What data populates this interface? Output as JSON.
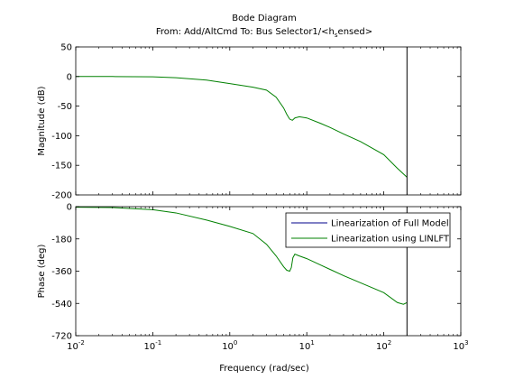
{
  "colors": {
    "background": "#ffffff",
    "axes_background": "#ffffff",
    "axis_line": "#000000",
    "full_model": "#00008b",
    "linlft": "#008000",
    "marker_line": "#000000"
  },
  "chart_data": {
    "type": "line",
    "title": "Bode Diagram",
    "subtitle": "From: Add/AltCmd  To: Bus Selector1/<h_sensed>",
    "xlabel": "Frequency  (rad/sec)",
    "xscale": "log",
    "xlim": [
      0.01,
      1000
    ],
    "x_tick_labels": [
      {
        "base": "10",
        "exp": "-2"
      },
      {
        "base": "10",
        "exp": "-1"
      },
      {
        "base": "10",
        "exp": "0"
      },
      {
        "base": "10",
        "exp": "1"
      },
      {
        "base": "10",
        "exp": "2"
      },
      {
        "base": "10",
        "exp": "3"
      }
    ],
    "vertical_line_at": 200,
    "grid": false,
    "legend": {
      "placement": "top-right of phase plot",
      "entries": [
        {
          "name": "Linearization of Full Model",
          "color": "#00008b"
        },
        {
          "name": "Linearization using LINLFT",
          "color": "#008000"
        }
      ]
    },
    "magnitude": {
      "ylabel": "Magnitude (dB)",
      "ylim": [
        -200,
        50
      ],
      "y_ticks": [
        50,
        0,
        -50,
        -100,
        -150,
        -200
      ],
      "series": [
        {
          "name": "Linearization using LINLFT",
          "x": [
            0.01,
            0.03,
            0.1,
            0.2,
            0.5,
            1,
            2,
            3,
            4,
            5,
            5.5,
            6,
            6.5,
            7,
            8,
            10,
            15,
            20,
            30,
            50,
            100,
            150,
            200
          ],
          "y": [
            0,
            0,
            -0.5,
            -2,
            -6,
            -12,
            -18,
            -23,
            -35,
            -53,
            -64,
            -72,
            -74,
            -70,
            -68,
            -70,
            -79,
            -86,
            -97,
            -110,
            -132,
            -155,
            -170
          ]
        }
      ]
    },
    "phase": {
      "ylabel": "Phase (deg)",
      "ylim": [
        -720,
        0
      ],
      "y_ticks": [
        0,
        -180,
        -360,
        -540,
        -720
      ],
      "series": [
        {
          "name": "Linearization using LINLFT",
          "x": [
            0.01,
            0.03,
            0.1,
            0.2,
            0.5,
            1,
            2,
            3,
            4,
            5,
            5.5,
            6,
            6.3,
            6.6,
            7,
            8,
            10,
            15,
            20,
            30,
            50,
            100,
            150,
            180,
            200
          ],
          "y": [
            -3,
            -5,
            -17,
            -35,
            -75,
            -110,
            -150,
            -210,
            -275,
            -335,
            -355,
            -360,
            -340,
            -285,
            -265,
            -275,
            -290,
            -325,
            -350,
            -385,
            -425,
            -480,
            -535,
            -545,
            -535
          ]
        }
      ]
    }
  }
}
